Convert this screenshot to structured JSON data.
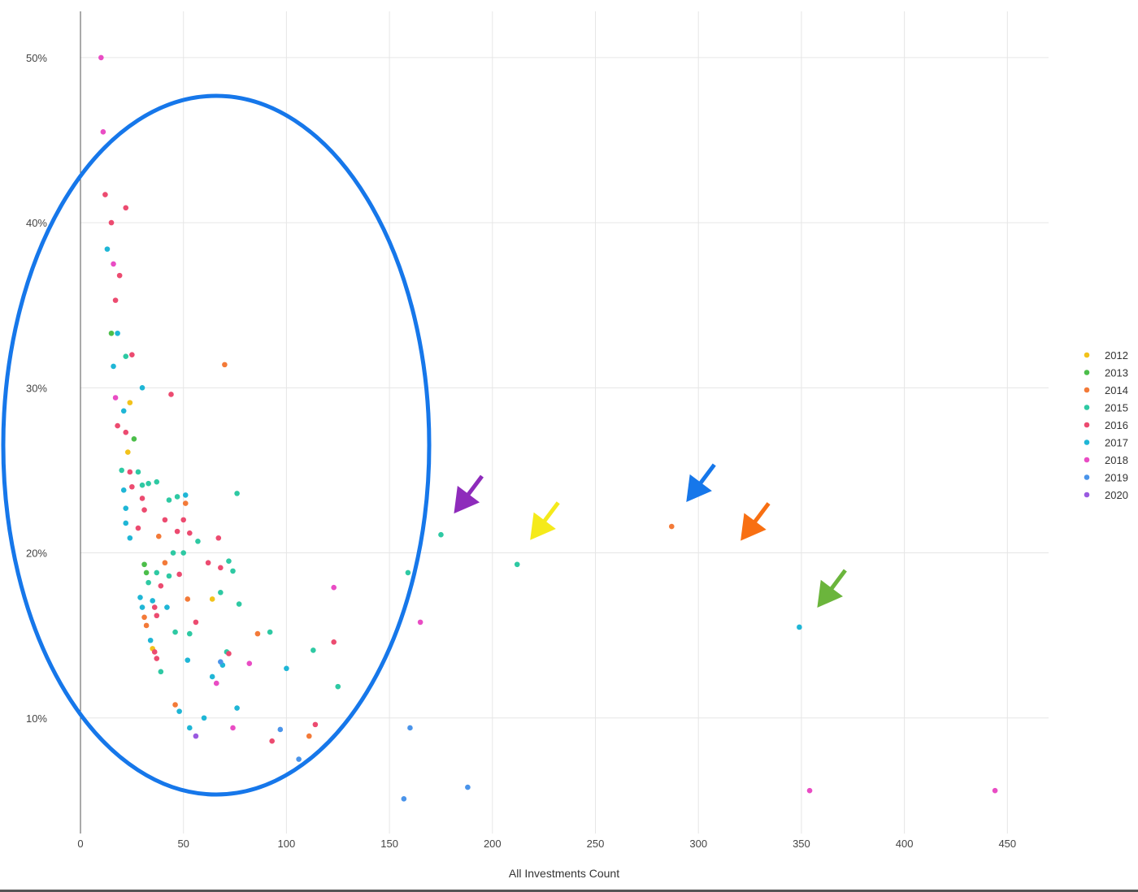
{
  "chart_data": {
    "type": "scatter",
    "title": "",
    "xlabel": "All Investments Count",
    "ylabel": "",
    "xlim": [
      0,
      470
    ],
    "ylim": [
      3,
      52.8
    ],
    "x_ticks": [
      0,
      50,
      100,
      150,
      200,
      250,
      300,
      350,
      400,
      450
    ],
    "x_tick_labels": [
      "0",
      "50",
      "100",
      "150",
      "200",
      "250",
      "300",
      "350",
      "400",
      "450"
    ],
    "y_ticks": [
      10,
      20,
      30,
      40,
      50
    ],
    "y_tick_labels": [
      "10%",
      "20%",
      "30%",
      "40%",
      "50%"
    ],
    "grid": true,
    "legend_position": "right",
    "series": [
      {
        "name": "2012",
        "color": "#f2c21b",
        "points": [
          [
            24,
            29.1
          ],
          [
            23,
            26.1
          ],
          [
            35,
            14.2
          ],
          [
            64,
            17.2
          ]
        ]
      },
      {
        "name": "2013",
        "color": "#4cbe4a",
        "points": [
          [
            15,
            33.3
          ],
          [
            26,
            26.9
          ],
          [
            31,
            19.3
          ],
          [
            32,
            18.8
          ]
        ]
      },
      {
        "name": "2014",
        "color": "#f37a38",
        "points": [
          [
            70,
            31.4
          ],
          [
            51,
            23.0
          ],
          [
            38,
            21.0
          ],
          [
            41,
            19.4
          ],
          [
            52,
            17.2
          ],
          [
            31,
            16.1
          ],
          [
            32,
            15.6
          ],
          [
            46,
            10.8
          ],
          [
            86,
            15.1
          ],
          [
            111,
            8.9
          ],
          [
            287,
            21.6
          ]
        ]
      },
      {
        "name": "2015",
        "color": "#2ec9a3",
        "points": [
          [
            22,
            31.9
          ],
          [
            20,
            25.0
          ],
          [
            28,
            24.9
          ],
          [
            33,
            24.2
          ],
          [
            37,
            24.3
          ],
          [
            47,
            23.4
          ],
          [
            43,
            23.2
          ],
          [
            30,
            24.1
          ],
          [
            76,
            23.6
          ],
          [
            57,
            20.7
          ],
          [
            45,
            20.0
          ],
          [
            50,
            20.0
          ],
          [
            33,
            18.2
          ],
          [
            37,
            18.8
          ],
          [
            43,
            18.6
          ],
          [
            72,
            19.5
          ],
          [
            74,
            18.9
          ],
          [
            68,
            17.6
          ],
          [
            77,
            16.9
          ],
          [
            46,
            15.2
          ],
          [
            53,
            15.1
          ],
          [
            71,
            14.0
          ],
          [
            39,
            12.8
          ],
          [
            92,
            15.2
          ],
          [
            113,
            14.1
          ],
          [
            125,
            11.9
          ],
          [
            175,
            21.1
          ],
          [
            159,
            18.8
          ],
          [
            212,
            19.3
          ]
        ]
      },
      {
        "name": "2016",
        "color": "#ec4b70",
        "points": [
          [
            12,
            41.7
          ],
          [
            22,
            40.9
          ],
          [
            15,
            40.0
          ],
          [
            19,
            36.8
          ],
          [
            17,
            35.3
          ],
          [
            25,
            32.0
          ],
          [
            44,
            29.6
          ],
          [
            18,
            27.7
          ],
          [
            22,
            27.3
          ],
          [
            24,
            24.9
          ],
          [
            25,
            24.0
          ],
          [
            30,
            23.3
          ],
          [
            31,
            22.6
          ],
          [
            41,
            22.0
          ],
          [
            50,
            22.0
          ],
          [
            47,
            21.3
          ],
          [
            53,
            21.2
          ],
          [
            28,
            21.5
          ],
          [
            67,
            20.9
          ],
          [
            62,
            19.4
          ],
          [
            68,
            19.1
          ],
          [
            48,
            18.7
          ],
          [
            39,
            18.0
          ],
          [
            36,
            16.7
          ],
          [
            37,
            16.2
          ],
          [
            56,
            15.8
          ],
          [
            36,
            14.0
          ],
          [
            37,
            13.6
          ],
          [
            72,
            13.9
          ],
          [
            123,
            14.6
          ],
          [
            114,
            9.6
          ],
          [
            93,
            8.6
          ]
        ]
      },
      {
        "name": "2017",
        "color": "#1fb6d6",
        "points": [
          [
            13,
            38.4
          ],
          [
            18,
            33.3
          ],
          [
            16,
            31.3
          ],
          [
            30,
            30.0
          ],
          [
            21,
            28.6
          ],
          [
            21,
            23.8
          ],
          [
            22,
            22.7
          ],
          [
            22,
            21.8
          ],
          [
            24,
            20.9
          ],
          [
            29,
            17.3
          ],
          [
            35,
            17.1
          ],
          [
            42,
            16.7
          ],
          [
            30,
            16.7
          ],
          [
            34,
            14.7
          ],
          [
            52,
            13.5
          ],
          [
            69,
            13.2
          ],
          [
            64,
            12.5
          ],
          [
            76,
            10.6
          ],
          [
            100,
            13.0
          ],
          [
            48,
            10.4
          ],
          [
            60,
            10.0
          ],
          [
            53,
            9.4
          ],
          [
            51,
            23.5
          ],
          [
            349,
            15.5
          ]
        ]
      },
      {
        "name": "2018",
        "color": "#e94cc4",
        "points": [
          [
            10,
            50.0
          ],
          [
            11,
            45.5
          ],
          [
            16,
            37.5
          ],
          [
            17,
            29.4
          ],
          [
            123,
            17.9
          ],
          [
            165,
            15.8
          ],
          [
            82,
            13.3
          ],
          [
            66,
            12.1
          ],
          [
            74,
            9.4
          ],
          [
            354,
            5.6
          ],
          [
            444,
            5.6
          ]
        ]
      },
      {
        "name": "2019",
        "color": "#4a94ea",
        "points": [
          [
            68,
            13.4
          ],
          [
            97,
            9.3
          ],
          [
            106,
            7.5
          ],
          [
            160,
            9.4
          ],
          [
            188,
            5.8
          ],
          [
            157,
            5.1
          ]
        ]
      },
      {
        "name": "2020",
        "color": "#9a5ae0",
        "points": [
          [
            56,
            8.9
          ]
        ]
      }
    ],
    "annotations": [
      {
        "type": "ellipse",
        "color": "#1677ea"
      },
      {
        "type": "arrow",
        "color": "#8e2bbb",
        "points_to": [
          175,
          21.1
        ]
      },
      {
        "type": "arrow",
        "color": "#f5ea1a",
        "points_to": [
          212,
          19.3
        ]
      },
      {
        "type": "arrow",
        "color": "#1677ea",
        "points_to": [
          287,
          21.6
        ]
      },
      {
        "type": "arrow",
        "color": "#f86f12",
        "points_to": [
          311,
          19.6
        ]
      },
      {
        "type": "arrow",
        "color": "#6bb53c",
        "points_to": [
          349,
          15.5
        ]
      }
    ]
  }
}
